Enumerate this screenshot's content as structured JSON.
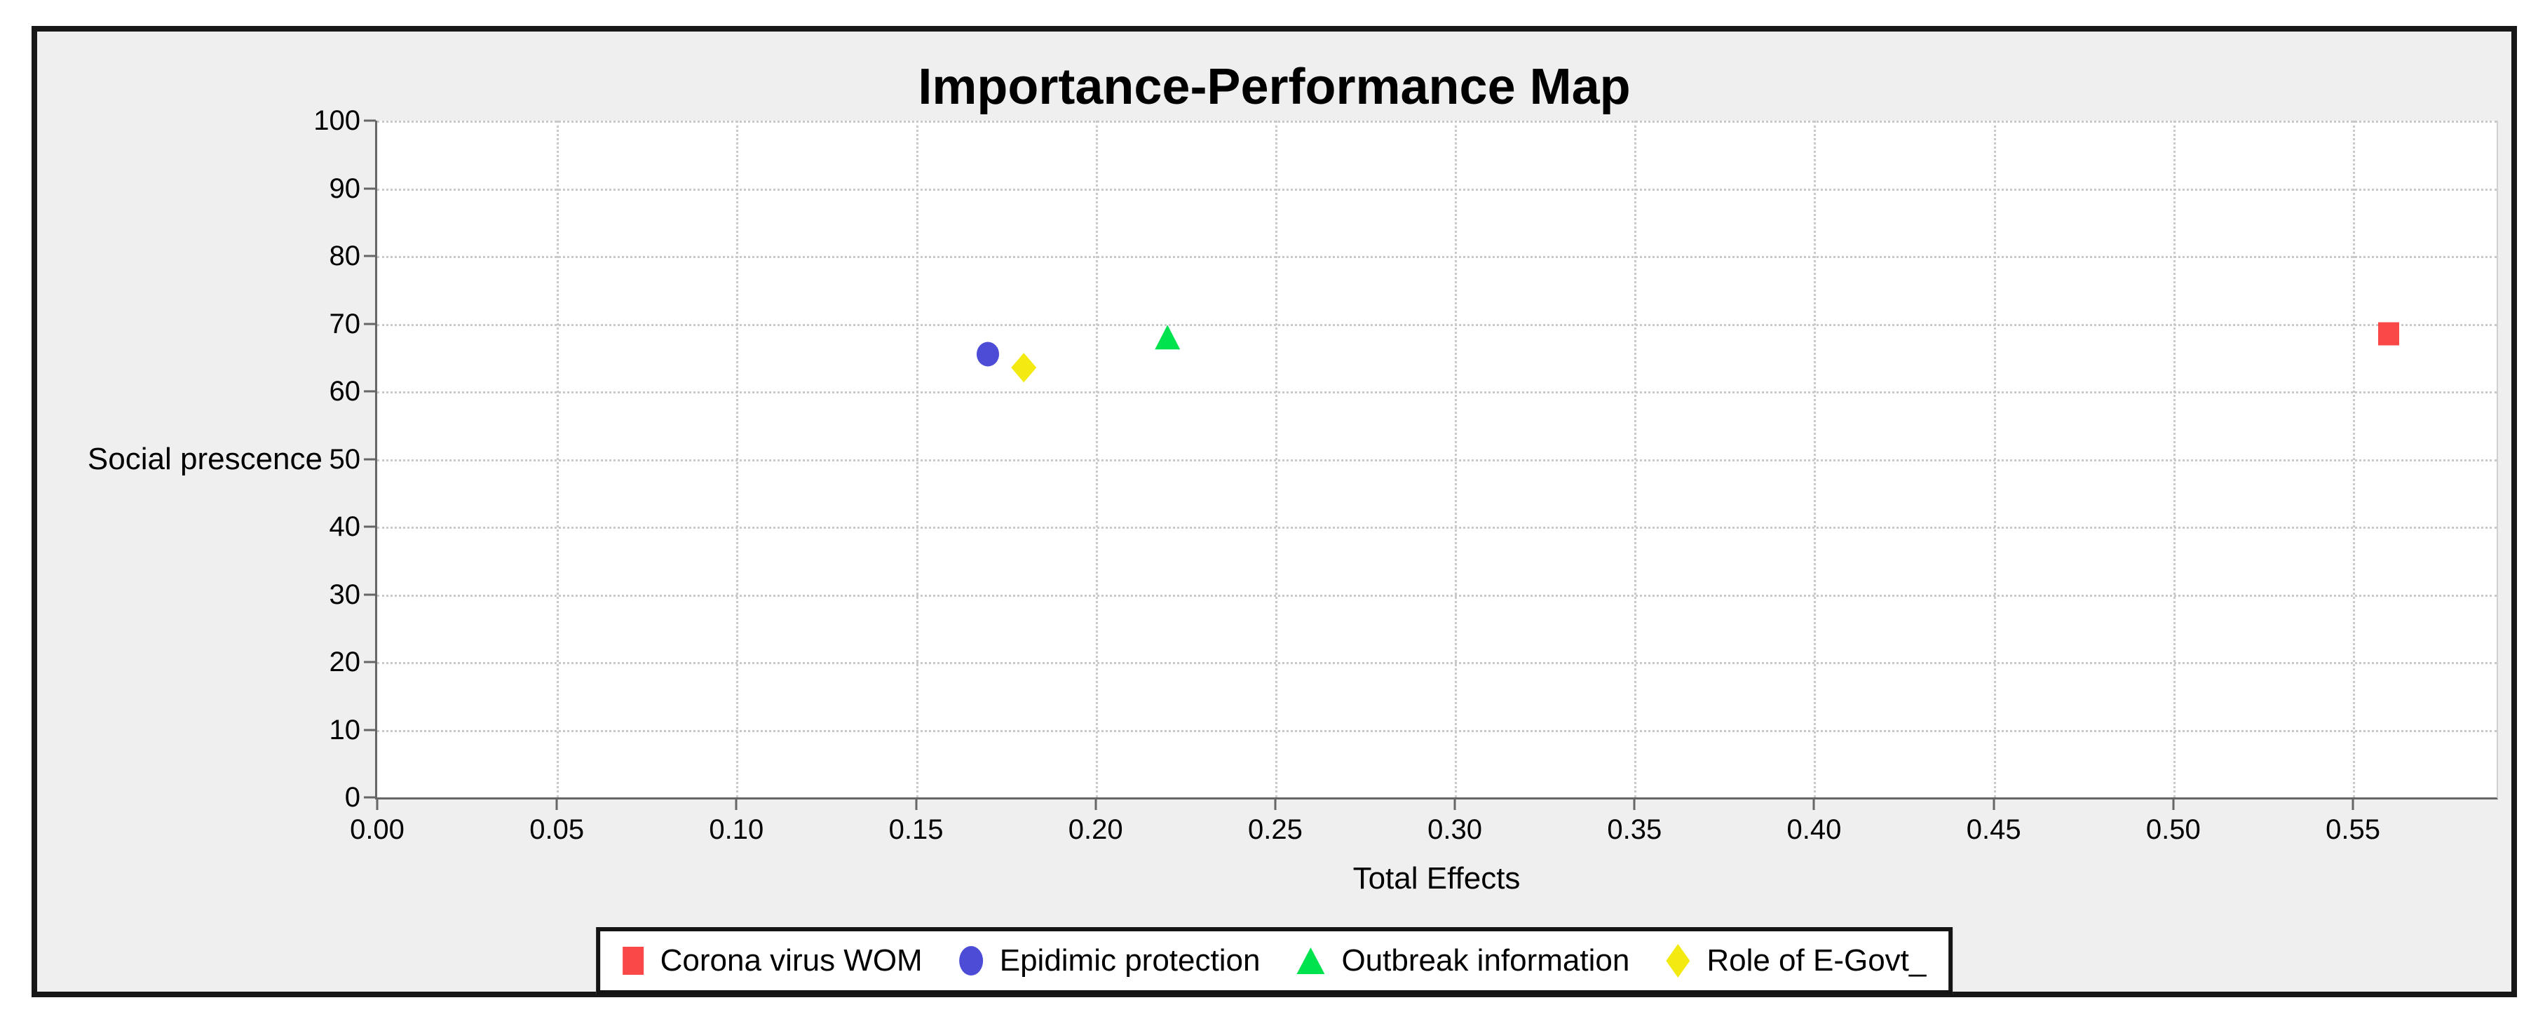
{
  "chart": {
    "frame_color": "#181818",
    "background": "#efefef",
    "plot_background": "#ffffff",
    "gridline_color": "#c9c9c9",
    "axis_color": "#666666"
  },
  "chart_data": {
    "type": "scatter",
    "title": "Importance-Performance Map",
    "xlabel": "Total Effects",
    "ylabel": "Social prescence",
    "xlim": [
      0,
      0.59
    ],
    "ylim": [
      0,
      100
    ],
    "x_ticks": [
      "0.00",
      "0.05",
      "0.10",
      "0.15",
      "0.20",
      "0.25",
      "0.30",
      "0.35",
      "0.40",
      "0.45",
      "0.50",
      "0.55"
    ],
    "y_ticks": [
      0,
      10,
      20,
      30,
      40,
      50,
      60,
      70,
      80,
      90,
      100
    ],
    "grid": true,
    "grid_style": "dotted",
    "legend_position": "bottom",
    "series": [
      {
        "name": "Corona virus WOM",
        "marker": "square",
        "color": "#fa4747",
        "points": [
          {
            "x": 0.56,
            "y": 68.5
          }
        ]
      },
      {
        "name": "Epidimic protection",
        "marker": "circle",
        "color": "#4c4cd6",
        "points": [
          {
            "x": 0.17,
            "y": 65.5
          }
        ]
      },
      {
        "name": "Outbreak information",
        "marker": "triangle",
        "color": "#00e34e",
        "points": [
          {
            "x": 0.22,
            "y": 68.0
          }
        ]
      },
      {
        "name": "Role of E-Govt_",
        "marker": "diamond",
        "color": "#f2ea10",
        "points": [
          {
            "x": 0.18,
            "y": 63.5
          }
        ]
      }
    ]
  }
}
